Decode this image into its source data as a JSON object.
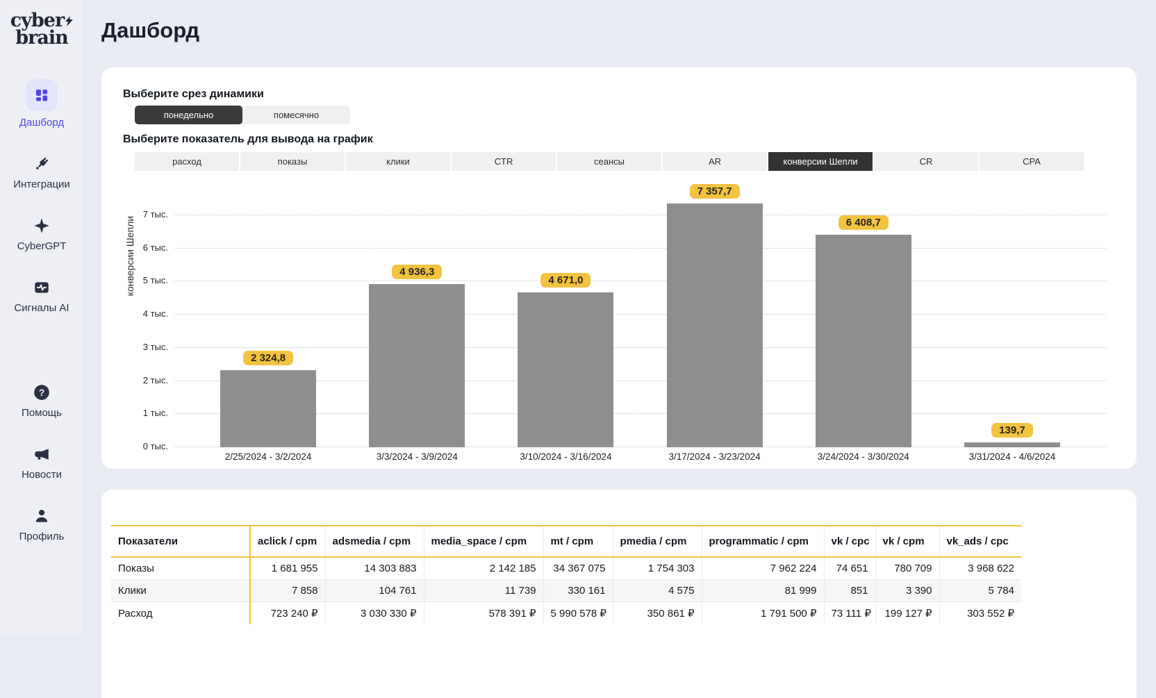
{
  "sidebar": {
    "logo_line1": "cyber",
    "logo_line2": "brain",
    "items": [
      {
        "label": "Дашборд",
        "icon": "dashboard-icon",
        "active": true,
        "group": "top"
      },
      {
        "label": "Интеграции",
        "icon": "plug-icon",
        "active": false,
        "group": "top"
      },
      {
        "label": "CyberGPT",
        "icon": "sparkle-icon",
        "active": false,
        "group": "top"
      },
      {
        "label": "Сигналы AI",
        "icon": "signal-icon",
        "active": false,
        "group": "top"
      },
      {
        "label": "Помощь",
        "icon": "help-icon",
        "active": false,
        "group": "bottom"
      },
      {
        "label": "Новости",
        "icon": "megaphone-icon",
        "active": false,
        "group": "bottom"
      },
      {
        "label": "Профиль",
        "icon": "profile-icon",
        "active": false,
        "group": "bottom"
      }
    ]
  },
  "header": {
    "title": "Дашборд"
  },
  "controls": {
    "slice_label": "Выберите срез динамики",
    "slice_options": [
      {
        "label": "понедельно",
        "selected": true
      },
      {
        "label": "помесячно",
        "selected": false
      }
    ],
    "metric_label": "Выберите показатель для вывода на график",
    "metric_tabs": [
      {
        "label": "расход",
        "selected": false
      },
      {
        "label": "показы",
        "selected": false
      },
      {
        "label": "клики",
        "selected": false
      },
      {
        "label": "CTR",
        "selected": false
      },
      {
        "label": "сеансы",
        "selected": false
      },
      {
        "label": "AR",
        "selected": false
      },
      {
        "label": "конверсии Шепли",
        "selected": true
      },
      {
        "label": "CR",
        "selected": false
      },
      {
        "label": "CPA",
        "selected": false
      }
    ]
  },
  "chart_data": {
    "type": "bar",
    "title": "",
    "xlabel": "",
    "ylabel": "конверсии Шепли",
    "categories": [
      "2/25/2024 - 3/2/2024",
      "3/3/2024 - 3/9/2024",
      "3/10/2024 - 3/16/2024",
      "3/17/2024 - 3/23/2024",
      "3/24/2024 - 3/30/2024",
      "3/31/2024 - 4/6/2024"
    ],
    "values": [
      2324.8,
      4936.3,
      4671.0,
      7357.7,
      6408.7,
      139.7
    ],
    "value_labels": [
      "2 324,8",
      "4 936,3",
      "4 671,0",
      "7 357,7",
      "6 408,7",
      "139,7"
    ],
    "y_ticks": [
      "0 тыс.",
      "1 тыс.",
      "2 тыс.",
      "3 тыс.",
      "4 тыс.",
      "5 тыс.",
      "6 тыс.",
      "7 тыс."
    ],
    "ylim": [
      0,
      7000
    ],
    "grid": "horizontal-dotted",
    "legend": "none"
  },
  "table": {
    "columns": [
      "Показатели",
      "aclick / cpm",
      "adsmedia / cpm",
      "media_space / cpm",
      "mt / cpm",
      "pmedia / cpm",
      "programmatic / cpm",
      "vk / cpc",
      "vk / cpm",
      "vk_ads / cpc"
    ],
    "rows": [
      {
        "label": "Показы",
        "values": [
          "1 681 955",
          "14 303 883",
          "2 142 185",
          "34 367 075",
          "1 754 303",
          "7 962 224",
          "74 651",
          "780 709",
          "3 968 622"
        ]
      },
      {
        "label": "Клики",
        "values": [
          "7 858",
          "104 761",
          "11 739",
          "330 161",
          "4 575",
          "81 999",
          "851",
          "3 390",
          "5 784"
        ]
      },
      {
        "label": "Расход",
        "values": [
          "723 240 ₽",
          "3 030 330 ₽",
          "578 391 ₽",
          "5 990 578 ₽",
          "350 861 ₽",
          "1 791 500 ₽",
          "73 111 ₽",
          "199 127 ₽",
          "303 552 ₽"
        ]
      }
    ]
  },
  "colors": {
    "accent_indigo": "#4f46e5",
    "accent_indigo_bg": "#e3e4fb",
    "badge_yellow": "#f2c341",
    "table_accent_yellow": "#eec43c",
    "bar_gray": "#8e8e8e",
    "selected_tab_dark": "#333333",
    "navy_text": "#222936"
  }
}
